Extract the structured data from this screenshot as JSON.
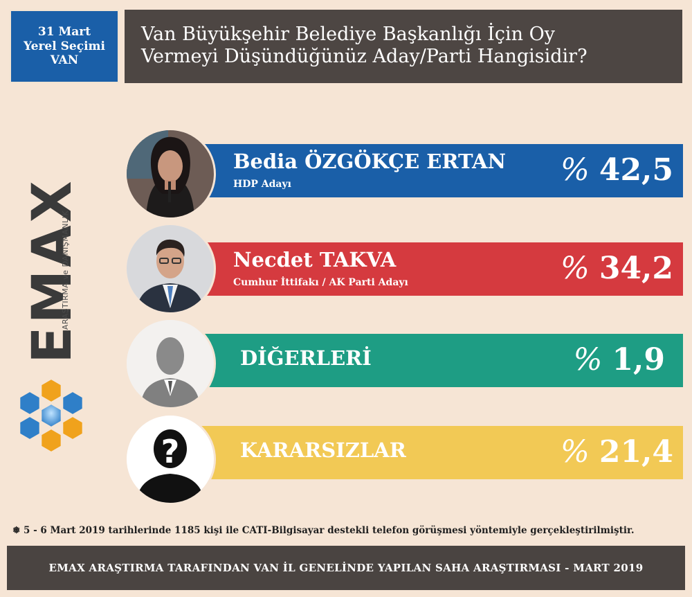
{
  "header": {
    "left_lines": [
      "31 Mart",
      "Yerel Seçimi",
      "VAN"
    ],
    "title_lines": [
      "Van Büyükşehir Belediye Başkanlığı İçin Oy",
      "Vermeyi Düşündüğünüz Aday/Parti Hangisidir?"
    ]
  },
  "logo": {
    "name": "EMAX",
    "subtitle": "ARAŞTIRMA ve DANIŞMANLIK",
    "colors": [
      "#2f7fc8",
      "#f0a21c",
      "#3a3a3a"
    ]
  },
  "chart_data": {
    "type": "bar",
    "title": "Van Büyükşehir Belediye Başkanlığı İçin Oy Vermeyi Düşündüğünüz Aday/Parti Hangisidir?",
    "categories": [
      "Bedia ÖZGÖKÇE ERTAN",
      "Necdet TAKVA",
      "DİĞERLERİ",
      "KARARSIZLAR"
    ],
    "subtitles": [
      "HDP Adayı",
      "Cumhur İttifakı / AK Parti Adayı",
      "",
      ""
    ],
    "values": [
      42.5,
      34.2,
      1.9,
      21.4
    ],
    "value_labels": [
      "42,5",
      "34,2",
      "1,9",
      "21,4"
    ],
    "percent_symbol": "%",
    "colors": [
      "#1a5fa8",
      "#d53a3f",
      "#1e9d84",
      "#f2c955"
    ],
    "avatars": [
      "woman-photo-icon",
      "man-photo-icon",
      "silhouette-icon",
      "question-silhouette-icon"
    ]
  },
  "footnote": "❅ 5 - 6 Mart 2019 tarihlerinde 1185 kişi ile CATI-Bilgisayar destekli telefon görüşmesi yöntemiyle gerçekleştirilmiştir.",
  "footer": "EMAX ARAŞTIRMA TARAFINDAN VAN İL GENELİNDE YAPILAN SAHA ARAŞTIRMASI - MART 2019"
}
